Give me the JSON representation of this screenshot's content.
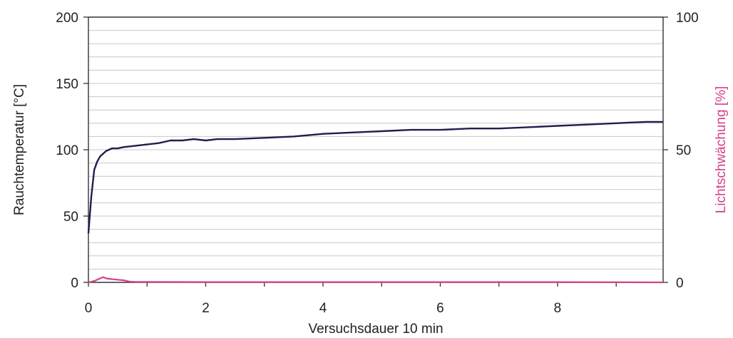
{
  "chart_data": {
    "type": "line",
    "title": "",
    "xlabel": "Versuchsdauer 10 min",
    "ylabel": "Rauchtemperatur [°C]",
    "y2label": "Lichtschwächung [%]",
    "xlim": [
      0,
      9.8
    ],
    "ylim": [
      0,
      200
    ],
    "y2lim": [
      0,
      100
    ],
    "x_ticks": [
      "0",
      "2",
      "4",
      "6",
      "8"
    ],
    "y_ticks": [
      "0",
      "50",
      "100",
      "150",
      "200"
    ],
    "y2_ticks": [
      "0",
      "50",
      "100"
    ],
    "grid": true,
    "colors": {
      "temperature": "#1f1f4d",
      "light_obscuration": "#d6408a",
      "y2label": "#d6408a"
    },
    "series": [
      {
        "axis": "left",
        "x": [
          0,
          0.05,
          0.1,
          0.15,
          0.2,
          0.3,
          0.4,
          0.5,
          0.6,
          0.8,
          1.0,
          1.2,
          1.4,
          1.6,
          1.8,
          2.0,
          2.2,
          2.5,
          3.0,
          3.5,
          4.0,
          4.5,
          5.0,
          5.5,
          6.0,
          6.5,
          7.0,
          7.5,
          8.0,
          8.5,
          9.0,
          9.5,
          9.8
        ],
        "values": [
          37,
          65,
          85,
          91,
          95,
          99,
          101,
          101,
          102,
          103,
          104,
          105,
          107,
          107,
          108,
          107,
          108,
          108,
          109,
          110,
          112,
          113,
          114,
          115,
          115,
          116,
          116,
          117,
          118,
          119,
          120,
          121,
          121
        ]
      },
      {
        "axis": "right",
        "x": [
          0,
          0.1,
          0.2,
          0.25,
          0.3,
          0.4,
          0.5,
          0.6,
          0.7,
          0.8,
          1.0,
          2.0,
          4.0,
          6.0,
          8.0,
          9.8
        ],
        "values": [
          0,
          0.5,
          1.5,
          2.0,
          1.5,
          1.2,
          1.0,
          0.8,
          0.3,
          0.2,
          0.2,
          0.1,
          0.1,
          0.1,
          0.1,
          0.0
        ]
      }
    ]
  }
}
